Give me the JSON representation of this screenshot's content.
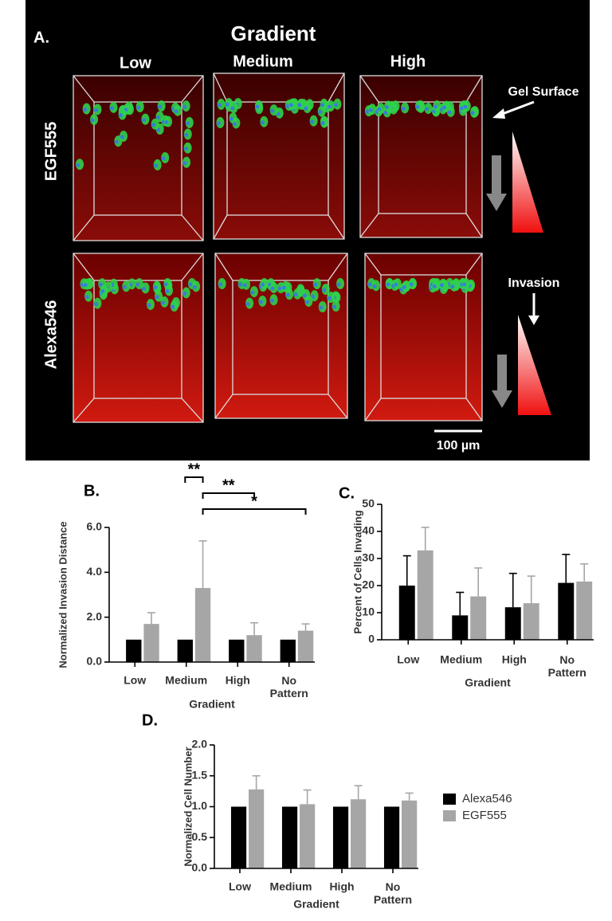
{
  "panel_a": {
    "label": "A.",
    "title": "Gradient",
    "columns": [
      "Low",
      "Medium",
      "High"
    ],
    "rows": [
      "EGF555",
      "Alexa546"
    ],
    "gel_surface": "Gel Surface",
    "invasion": "Invasion",
    "scale_bar": "100 µm"
  },
  "chart_data": [
    {
      "type": "bar",
      "label": "B.",
      "ylabel": "Normalized Invasion Distance",
      "xlabel": "Gradient",
      "categories": [
        "Low",
        "Medium",
        "High",
        "No Pattern"
      ],
      "series": [
        {
          "color": "#000000",
          "values": [
            1,
            1,
            1,
            1
          ],
          "errors": [
            0,
            0,
            0,
            0
          ]
        },
        {
          "color": "#a6a6a6",
          "values": [
            1.7,
            3.3,
            1.2,
            1.4
          ],
          "errors": [
            0.5,
            2.1,
            0.55,
            0.3
          ]
        }
      ],
      "ylim": [
        0,
        6
      ],
      "yticks": [
        {
          "value": 0,
          "label": "0.0"
        },
        {
          "value": 2,
          "label": "2.0"
        },
        {
          "value": 4,
          "label": "4.0"
        },
        {
          "value": 6,
          "label": "6.0"
        }
      ],
      "annotations": [
        "**",
        "**",
        "*"
      ]
    },
    {
      "type": "bar",
      "label": "C.",
      "ylabel": "Percent of Cells Invading",
      "xlabel": "Gradient",
      "categories": [
        "Low",
        "Medium",
        "High",
        "No Pattern"
      ],
      "series": [
        {
          "color": "#000000",
          "values": [
            20,
            9,
            12,
            21
          ],
          "errors": [
            11,
            8.5,
            12.5,
            10.5
          ]
        },
        {
          "color": "#a6a6a6",
          "values": [
            33,
            16,
            13.5,
            21.5
          ],
          "errors": [
            8.5,
            10.5,
            10,
            6.5
          ]
        }
      ],
      "ylim": [
        0,
        50
      ],
      "yticks": [
        0,
        10,
        20,
        30,
        40,
        50
      ]
    },
    {
      "type": "bar",
      "label": "D.",
      "ylabel": "Normalized Cell Number",
      "xlabel": "Gradient",
      "categories": [
        "Low",
        "Medium",
        "High",
        "No Pattern"
      ],
      "series": [
        {
          "name": "Alexa546",
          "color": "#000000",
          "values": [
            1,
            1,
            1,
            1
          ],
          "errors": [
            0,
            0,
            0,
            0
          ]
        },
        {
          "name": "EGF555",
          "color": "#a6a6a6",
          "values": [
            1.28,
            1.04,
            1.12,
            1.1
          ],
          "errors": [
            0.22,
            0.23,
            0.22,
            0.12
          ]
        }
      ],
      "ylim": [
        0,
        2
      ],
      "yticks": [
        {
          "value": 0,
          "label": "0.0"
        },
        {
          "value": 0.5,
          "label": "0.5"
        },
        {
          "value": 1,
          "label": "1.0"
        },
        {
          "value": 1.5,
          "label": "1.5"
        },
        {
          "value": 2,
          "label": "2.0"
        }
      ],
      "legend": "right"
    }
  ]
}
